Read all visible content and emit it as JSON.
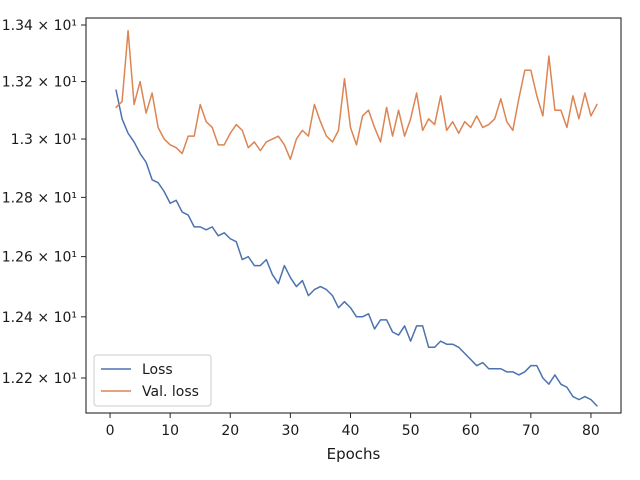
{
  "chart_data": {
    "type": "line",
    "xlabel": "Epochs",
    "ylabel": "",
    "title": "",
    "xlim": [
      -4,
      85
    ],
    "ylim": [
      12.087,
      13.425
    ],
    "x_ticks": [
      0,
      10,
      20,
      30,
      40,
      50,
      60,
      70,
      80
    ],
    "y_ticks": [
      {
        "value": 12.2,
        "label": "1.22 × 10¹"
      },
      {
        "value": 12.4,
        "label": "1.24 × 10¹"
      },
      {
        "value": 12.6,
        "label": "1.26 × 10¹"
      },
      {
        "value": 12.8,
        "label": "1.28 × 10¹"
      },
      {
        "value": 13.0,
        "label": "1.3 × 10¹"
      },
      {
        "value": 13.2,
        "label": "1.32 × 10¹"
      },
      {
        "value": 13.4,
        "label": "1.34 × 10¹"
      }
    ],
    "y_scale": "log",
    "grid": false,
    "legend_position": "lower-left",
    "x": [
      1,
      2,
      3,
      4,
      5,
      6,
      7,
      8,
      9,
      10,
      11,
      12,
      13,
      14,
      15,
      16,
      17,
      18,
      19,
      20,
      21,
      22,
      23,
      24,
      25,
      26,
      27,
      28,
      29,
      30,
      31,
      32,
      33,
      34,
      35,
      36,
      37,
      38,
      39,
      40,
      41,
      42,
      43,
      44,
      45,
      46,
      47,
      48,
      49,
      50,
      51,
      52,
      53,
      54,
      55,
      56,
      57,
      58,
      59,
      60,
      61,
      62,
      63,
      64,
      65,
      66,
      67,
      68,
      69,
      70,
      71,
      72,
      73,
      74,
      75,
      76,
      77,
      78,
      79,
      80,
      81
    ],
    "series": [
      {
        "name": "Loss",
        "color": "#4c72b0",
        "values": [
          13.17,
          13.07,
          13.02,
          12.99,
          12.95,
          12.92,
          12.86,
          12.85,
          12.82,
          12.78,
          12.79,
          12.75,
          12.74,
          12.7,
          12.7,
          12.69,
          12.7,
          12.67,
          12.68,
          12.66,
          12.65,
          12.59,
          12.6,
          12.57,
          12.57,
          12.59,
          12.54,
          12.51,
          12.57,
          12.53,
          12.5,
          12.52,
          12.47,
          12.49,
          12.5,
          12.49,
          12.47,
          12.43,
          12.45,
          12.43,
          12.4,
          12.4,
          12.41,
          12.36,
          12.39,
          12.39,
          12.35,
          12.34,
          12.37,
          12.32,
          12.37,
          12.37,
          12.3,
          12.3,
          12.32,
          12.31,
          12.31,
          12.3,
          12.28,
          12.26,
          12.24,
          12.25,
          12.23,
          12.23,
          12.23,
          12.22,
          12.22,
          12.21,
          12.22,
          12.24,
          12.24,
          12.2,
          12.18,
          12.21,
          12.18,
          12.17,
          12.14,
          12.13,
          12.14,
          12.13,
          12.11
        ]
      },
      {
        "name": "Val. loss",
        "color": "#dd8452",
        "values": [
          13.11,
          13.13,
          13.38,
          13.12,
          13.2,
          13.09,
          13.16,
          13.04,
          13.0,
          12.98,
          12.97,
          12.95,
          13.01,
          13.01,
          13.12,
          13.06,
          13.04,
          12.98,
          12.98,
          13.02,
          13.05,
          13.03,
          12.97,
          12.99,
          12.96,
          12.99,
          13.0,
          13.01,
          12.98,
          12.93,
          13.0,
          13.03,
          13.01,
          13.12,
          13.06,
          13.01,
          12.99,
          13.03,
          13.21,
          13.04,
          12.98,
          13.08,
          13.1,
          13.04,
          12.99,
          13.11,
          13.01,
          13.1,
          13.01,
          13.07,
          13.16,
          13.03,
          13.07,
          13.05,
          13.15,
          13.03,
          13.06,
          13.02,
          13.06,
          13.04,
          13.08,
          13.04,
          13.05,
          13.07,
          13.14,
          13.06,
          13.03,
          13.14,
          13.24,
          13.24,
          13.15,
          13.08,
          13.29,
          13.1,
          13.1,
          13.04,
          13.15,
          13.07,
          13.16,
          13.08,
          13.12
        ]
      }
    ]
  }
}
